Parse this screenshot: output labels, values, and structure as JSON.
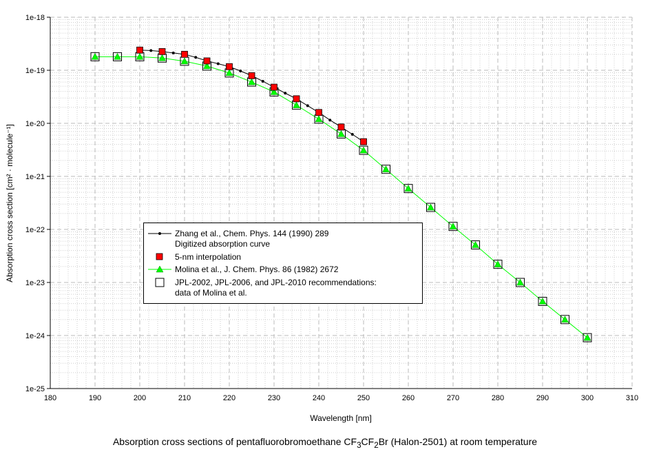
{
  "chart_data": {
    "type": "scatter",
    "title_parts": [
      "Absorption cross sections of pentafluorobromoethane CF",
      "3",
      "CF",
      "2",
      "Br (Halon-2501) at room temperature"
    ],
    "xlabel": "Wavelength [nm]",
    "ylabel": "Absorption cross section [cm² · molecule⁻¹]",
    "xlim": [
      180,
      310
    ],
    "ylim": [
      1e-25,
      1e-18
    ],
    "yscale": "log",
    "xticks": [
      "180",
      "190",
      "200",
      "210",
      "220",
      "230",
      "240",
      "250",
      "260",
      "270",
      "280",
      "290",
      "300",
      "310"
    ],
    "yticks": [
      "1e-25",
      "1e-24",
      "1e-23",
      "1e-22",
      "1e-21",
      "1e-20",
      "1e-19",
      "1e-18"
    ],
    "grid": true,
    "legend_position": "center-left",
    "series": [
      {
        "name": "Zhang et al., Chem. Phys. 144 (1990) 289",
        "name2": "Digitized absorption curve",
        "color": "#000000",
        "marker": "dot",
        "x": [
          200,
          202.5,
          205,
          207.5,
          210,
          212.5,
          215,
          217.5,
          220,
          222.5,
          225,
          227.5,
          230,
          232.5,
          235,
          237.5,
          240,
          242.5,
          245,
          247.5,
          250
        ],
        "y": [
          2.4e-19,
          2.35e-19,
          2.25e-19,
          2.12e-19,
          2e-19,
          1.75e-19,
          1.5e-19,
          1.33e-19,
          1.17e-19,
          9.7e-20,
          7.9e-20,
          6.2e-20,
          4.8e-20,
          3.7e-20,
          2.9e-20,
          2.15e-20,
          1.6e-20,
          1.15e-20,
          8.5e-21,
          6.2e-21,
          4.5e-21
        ]
      },
      {
        "name": "5-nm interpolation",
        "color": "#ff0000",
        "marker": "square",
        "x": [
          200,
          205,
          210,
          215,
          220,
          225,
          230,
          235,
          240,
          245,
          250
        ],
        "y": [
          2.4e-19,
          2.25e-19,
          2e-19,
          1.5e-19,
          1.17e-19,
          7.9e-20,
          4.8e-20,
          2.9e-20,
          1.6e-20,
          8.5e-21,
          4.5e-21
        ]
      },
      {
        "name": "Molina et al., J. Chem. Phys. 86 (1982) 2672",
        "color": "#00ff00",
        "marker": "triangle",
        "x": [
          190,
          195,
          200,
          205,
          210,
          215,
          220,
          225,
          230,
          235,
          240,
          245,
          250,
          255,
          260,
          265,
          270,
          275,
          280,
          285,
          290,
          295,
          300
        ],
        "y": [
          1.8e-19,
          1.8e-19,
          1.8e-19,
          1.7e-19,
          1.48e-19,
          1.2e-19,
          8.9e-20,
          6e-20,
          3.9e-20,
          2.2e-20,
          1.2e-20,
          6.3e-21,
          3.1e-21,
          1.36e-21,
          5.9e-22,
          2.6e-22,
          1.14e-22,
          5.1e-23,
          2.2e-23,
          1e-23,
          4.4e-24,
          2e-24,
          9.1e-25
        ]
      },
      {
        "name": "JPL-2002, JPL-2006, and JPL-2010 recommendations:",
        "name2": "data of Molina et al.",
        "color": "#000000",
        "marker": "open-square",
        "x": [
          190,
          195,
          200,
          205,
          210,
          215,
          220,
          225,
          230,
          235,
          240,
          245,
          250,
          255,
          260,
          265,
          270,
          275,
          280,
          285,
          290,
          295,
          300
        ],
        "y": [
          1.8e-19,
          1.8e-19,
          1.8e-19,
          1.7e-19,
          1.48e-19,
          1.2e-19,
          8.9e-20,
          6e-20,
          3.9e-20,
          2.2e-20,
          1.2e-20,
          6.3e-21,
          3.1e-21,
          1.36e-21,
          5.9e-22,
          2.6e-22,
          1.14e-22,
          5.1e-23,
          2.2e-23,
          1e-23,
          4.4e-24,
          2e-24,
          9.1e-25
        ]
      }
    ]
  }
}
